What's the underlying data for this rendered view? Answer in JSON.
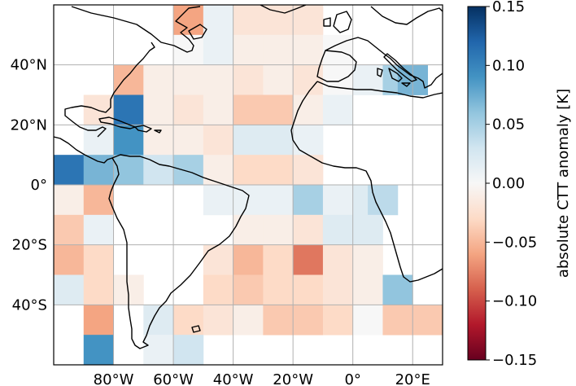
{
  "map": {
    "lon_range": [
      -100,
      30
    ],
    "lat_range": [
      -60,
      60
    ],
    "x_ticks": [
      {
        "value": -80,
        "label": "80°W"
      },
      {
        "value": -60,
        "label": "60°W"
      },
      {
        "value": -40,
        "label": "40°W"
      },
      {
        "value": -20,
        "label": "20°W"
      },
      {
        "value": 0,
        "label": "0°"
      },
      {
        "value": 20,
        "label": "20°E"
      }
    ],
    "y_ticks": [
      {
        "value": 40,
        "label": "40°N"
      },
      {
        "value": 20,
        "label": "20°N"
      },
      {
        "value": 0,
        "label": "0°"
      },
      {
        "value": -20,
        "label": "20°S"
      },
      {
        "value": -40,
        "label": "40°S"
      }
    ],
    "grid": true
  },
  "colorbar": {
    "label": "absolute CTT anomaly [K]",
    "range": [
      -0.15,
      0.15
    ],
    "ticks": [
      "0.15",
      "0.10",
      "0.05",
      "0.00",
      "−0.05",
      "−0.10",
      "−0.15"
    ],
    "colormap": "RdBu",
    "position": "right"
  },
  "chart_data": {
    "type": "heatmap",
    "cell_size_deg": 10,
    "units": "K",
    "cells": [
      {
        "lon": -55,
        "lat": 55,
        "v": -0.06
      },
      {
        "lon": -45,
        "lat": 55,
        "v": 0.01
      },
      {
        "lon": -35,
        "lat": 55,
        "v": -0.02
      },
      {
        "lon": -25,
        "lat": 55,
        "v": -0.02
      },
      {
        "lon": -15,
        "lat": 55,
        "v": -0.02
      },
      {
        "lon": -55,
        "lat": 45,
        "v": 0.0
      },
      {
        "lon": -45,
        "lat": 45,
        "v": 0.01
      },
      {
        "lon": -35,
        "lat": 45,
        "v": -0.01
      },
      {
        "lon": -25,
        "lat": 45,
        "v": -0.01
      },
      {
        "lon": -15,
        "lat": 45,
        "v": -0.01
      },
      {
        "lon": -5,
        "lat": 45,
        "v": 0.0
      },
      {
        "lon": -75,
        "lat": 35,
        "v": -0.05
      },
      {
        "lon": -65,
        "lat": 35,
        "v": -0.01
      },
      {
        "lon": -55,
        "lat": 35,
        "v": -0.01
      },
      {
        "lon": -45,
        "lat": 35,
        "v": -0.01
      },
      {
        "lon": -35,
        "lat": 35,
        "v": -0.02
      },
      {
        "lon": -25,
        "lat": 35,
        "v": -0.01
      },
      {
        "lon": -15,
        "lat": 35,
        "v": -0.02
      },
      {
        "lon": -5,
        "lat": 35,
        "v": 0.0
      },
      {
        "lon": 5,
        "lat": 35,
        "v": 0.01
      },
      {
        "lon": 15,
        "lat": 35,
        "v": 0.05
      },
      {
        "lon": 20,
        "lat": 35,
        "v": 0.07
      },
      {
        "lon": -85,
        "lat": 25,
        "v": -0.02
      },
      {
        "lon": -75,
        "lat": 25,
        "v": 0.11
      },
      {
        "lon": -65,
        "lat": 25,
        "v": -0.01
      },
      {
        "lon": -55,
        "lat": 25,
        "v": -0.02
      },
      {
        "lon": -45,
        "lat": 25,
        "v": -0.01
      },
      {
        "lon": -35,
        "lat": 25,
        "v": -0.04
      },
      {
        "lon": -25,
        "lat": 25,
        "v": -0.04
      },
      {
        "lon": -15,
        "lat": 25,
        "v": -0.01
      },
      {
        "lon": -5,
        "lat": 25,
        "v": 0.01
      },
      {
        "lon": -85,
        "lat": 15,
        "v": 0.01
      },
      {
        "lon": -75,
        "lat": 15,
        "v": 0.09
      },
      {
        "lon": -65,
        "lat": 15,
        "v": -0.01
      },
      {
        "lon": -55,
        "lat": 15,
        "v": -0.01
      },
      {
        "lon": -45,
        "lat": 15,
        "v": -0.02
      },
      {
        "lon": -35,
        "lat": 15,
        "v": 0.02
      },
      {
        "lon": -25,
        "lat": 15,
        "v": 0.02
      },
      {
        "lon": -15,
        "lat": 15,
        "v": 0.01
      },
      {
        "lon": -95,
        "lat": 5,
        "v": 0.11
      },
      {
        "lon": -85,
        "lat": 5,
        "v": 0.07
      },
      {
        "lon": -75,
        "lat": 5,
        "v": 0.06
      },
      {
        "lon": -65,
        "lat": 5,
        "v": 0.03
      },
      {
        "lon": -55,
        "lat": 5,
        "v": 0.05
      },
      {
        "lon": -45,
        "lat": 5,
        "v": -0.01
      },
      {
        "lon": -35,
        "lat": 5,
        "v": -0.03
      },
      {
        "lon": -25,
        "lat": 5,
        "v": -0.03
      },
      {
        "lon": -15,
        "lat": 5,
        "v": -0.02
      },
      {
        "lon": -95,
        "lat": -5,
        "v": -0.01
      },
      {
        "lon": -85,
        "lat": -5,
        "v": -0.05
      },
      {
        "lon": -45,
        "lat": -5,
        "v": 0.01
      },
      {
        "lon": -35,
        "lat": -5,
        "v": 0.01
      },
      {
        "lon": -25,
        "lat": -5,
        "v": 0.01
      },
      {
        "lon": -15,
        "lat": -5,
        "v": 0.05
      },
      {
        "lon": -5,
        "lat": -5,
        "v": 0.01
      },
      {
        "lon": 5,
        "lat": -5,
        "v": 0.02
      },
      {
        "lon": 10,
        "lat": -5,
        "v": 0.04
      },
      {
        "lon": -95,
        "lat": -15,
        "v": -0.04
      },
      {
        "lon": -85,
        "lat": -15,
        "v": 0.01
      },
      {
        "lon": -35,
        "lat": -15,
        "v": -0.01
      },
      {
        "lon": -25,
        "lat": -15,
        "v": -0.01
      },
      {
        "lon": -15,
        "lat": -15,
        "v": -0.02
      },
      {
        "lon": -5,
        "lat": -15,
        "v": 0.02
      },
      {
        "lon": 5,
        "lat": -15,
        "v": 0.02
      },
      {
        "lon": -95,
        "lat": -25,
        "v": -0.05
      },
      {
        "lon": -85,
        "lat": -25,
        "v": -0.03
      },
      {
        "lon": -45,
        "lat": -25,
        "v": -0.02
      },
      {
        "lon": -35,
        "lat": -25,
        "v": -0.05
      },
      {
        "lon": -25,
        "lat": -25,
        "v": -0.03
      },
      {
        "lon": -15,
        "lat": -25,
        "v": -0.08
      },
      {
        "lon": -5,
        "lat": -25,
        "v": -0.02
      },
      {
        "lon": 5,
        "lat": -25,
        "v": -0.01
      },
      {
        "lon": -95,
        "lat": -35,
        "v": 0.02
      },
      {
        "lon": -85,
        "lat": -35,
        "v": -0.03
      },
      {
        "lon": -75,
        "lat": -35,
        "v": -0.01
      },
      {
        "lon": -45,
        "lat": -35,
        "v": -0.03
      },
      {
        "lon": -35,
        "lat": -35,
        "v": -0.04
      },
      {
        "lon": -25,
        "lat": -35,
        "v": -0.03
      },
      {
        "lon": -15,
        "lat": -35,
        "v": -0.03
      },
      {
        "lon": -5,
        "lat": -35,
        "v": -0.02
      },
      {
        "lon": 5,
        "lat": -35,
        "v": -0.01
      },
      {
        "lon": 15,
        "lat": -35,
        "v": 0.06
      },
      {
        "lon": -85,
        "lat": -45,
        "v": -0.06
      },
      {
        "lon": -65,
        "lat": -45,
        "v": 0.02
      },
      {
        "lon": -55,
        "lat": -45,
        "v": -0.03
      },
      {
        "lon": -45,
        "lat": -45,
        "v": -0.02
      },
      {
        "lon": -35,
        "lat": -45,
        "v": -0.01
      },
      {
        "lon": -25,
        "lat": -45,
        "v": -0.04
      },
      {
        "lon": -15,
        "lat": -45,
        "v": -0.04
      },
      {
        "lon": -5,
        "lat": -45,
        "v": -0.03
      },
      {
        "lon": 5,
        "lat": -45,
        "v": 0.0
      },
      {
        "lon": 15,
        "lat": -45,
        "v": -0.04
      },
      {
        "lon": 25,
        "lat": -45,
        "v": -0.04
      },
      {
        "lon": -85,
        "lat": -55,
        "v": 0.09
      },
      {
        "lon": -65,
        "lat": -55,
        "v": 0.01
      },
      {
        "lon": -55,
        "lat": -55,
        "v": 0.03
      }
    ]
  }
}
